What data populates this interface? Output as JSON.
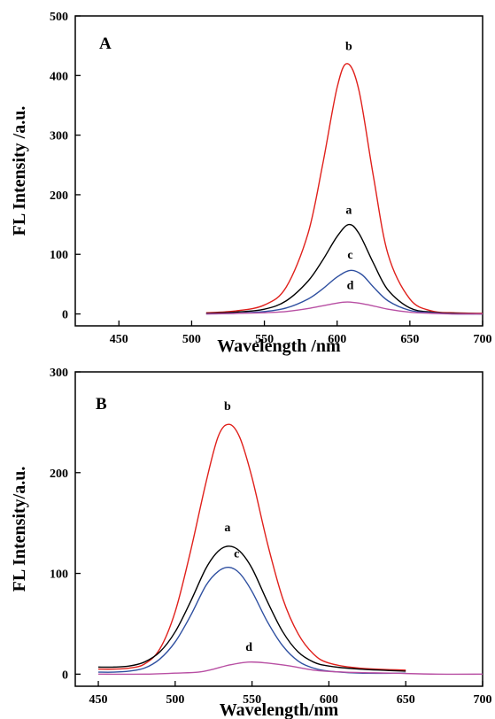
{
  "chart_data": [
    {
      "type": "line",
      "panel_label": "A",
      "xlabel": "Wavelength /nm",
      "ylabel": "FL Intensity /a.u.",
      "xlim": [
        420,
        700
      ],
      "ylim": [
        -20,
        500
      ],
      "xticks": [
        450,
        500,
        550,
        600,
        650,
        700
      ],
      "yticks": [
        0,
        100,
        200,
        300,
        400,
        500
      ],
      "grid": false,
      "series": [
        {
          "name": "b",
          "color": "#e0201b",
          "x": [
            510,
            530,
            550,
            565,
            580,
            590,
            600,
            607,
            615,
            625,
            635,
            650,
            665,
            680,
            700
          ],
          "y": [
            2,
            5,
            15,
            45,
            135,
            250,
            380,
            420,
            375,
            230,
            100,
            25,
            5,
            2,
            1
          ]
        },
        {
          "name": "a",
          "color": "#000000",
          "x": [
            510,
            530,
            550,
            565,
            580,
            590,
            600,
            608,
            615,
            625,
            635,
            650,
            665,
            680,
            700
          ],
          "y": [
            1,
            3,
            8,
            22,
            55,
            90,
            130,
            150,
            135,
            85,
            40,
            10,
            3,
            1,
            0
          ]
        },
        {
          "name": "c",
          "color": "#2e4fa0",
          "x": [
            510,
            530,
            550,
            565,
            580,
            590,
            600,
            609,
            617,
            625,
            635,
            650,
            665,
            680,
            700
          ],
          "y": [
            0,
            1,
            4,
            10,
            25,
            42,
            62,
            73,
            66,
            45,
            22,
            6,
            2,
            0,
            0
          ]
        },
        {
          "name": "d",
          "color": "#b84fa3",
          "x": [
            510,
            530,
            550,
            565,
            580,
            595,
            607,
            620,
            635,
            650,
            665,
            680,
            700
          ],
          "y": [
            0,
            1,
            2,
            4,
            9,
            16,
            20,
            16,
            8,
            3,
            1,
            0,
            0
          ]
        }
      ]
    },
    {
      "type": "line",
      "panel_label": "B",
      "xlabel": "Wavelength/nm",
      "ylabel": "FL Intensity/a.u.",
      "xlim": [
        435,
        700
      ],
      "ylim": [
        -12,
        300
      ],
      "xticks": [
        450,
        500,
        550,
        600,
        650,
        700
      ],
      "yticks": [
        0,
        100,
        200,
        300
      ],
      "grid": false,
      "series": [
        {
          "name": "b",
          "color": "#e0201b",
          "x": [
            450,
            460,
            470,
            480,
            490,
            500,
            510,
            520,
            528,
            535,
            542,
            550,
            560,
            570,
            580,
            590,
            600,
            620,
            650
          ],
          "y": [
            5,
            5,
            6,
            10,
            25,
            62,
            122,
            190,
            236,
            248,
            235,
            195,
            130,
            75,
            40,
            20,
            11,
            6,
            4
          ]
        },
        {
          "name": "a",
          "color": "#000000",
          "x": [
            450,
            460,
            470,
            480,
            490,
            500,
            510,
            520,
            528,
            535,
            542,
            550,
            560,
            570,
            580,
            590,
            600,
            620,
            650
          ],
          "y": [
            7,
            7,
            8,
            12,
            22,
            42,
            72,
            105,
            122,
            127,
            122,
            105,
            72,
            42,
            22,
            12,
            8,
            5,
            3
          ]
        },
        {
          "name": "c",
          "color": "#2e4fa0",
          "x": [
            450,
            460,
            470,
            480,
            490,
            500,
            510,
            520,
            528,
            535,
            542,
            550,
            560,
            570,
            580,
            590,
            600,
            620,
            650
          ],
          "y": [
            2,
            2,
            3,
            6,
            15,
            32,
            58,
            88,
            102,
            106,
            100,
            82,
            52,
            28,
            13,
            6,
            3,
            1,
            1
          ]
        },
        {
          "name": "d",
          "color": "#b84fa3",
          "x": [
            450,
            480,
            500,
            515,
            525,
            535,
            548,
            560,
            575,
            590,
            610,
            640,
            670,
            700
          ],
          "y": [
            0,
            0,
            1,
            2,
            5,
            9,
            12,
            11,
            8,
            4,
            2,
            1,
            0,
            0
          ]
        }
      ]
    }
  ]
}
